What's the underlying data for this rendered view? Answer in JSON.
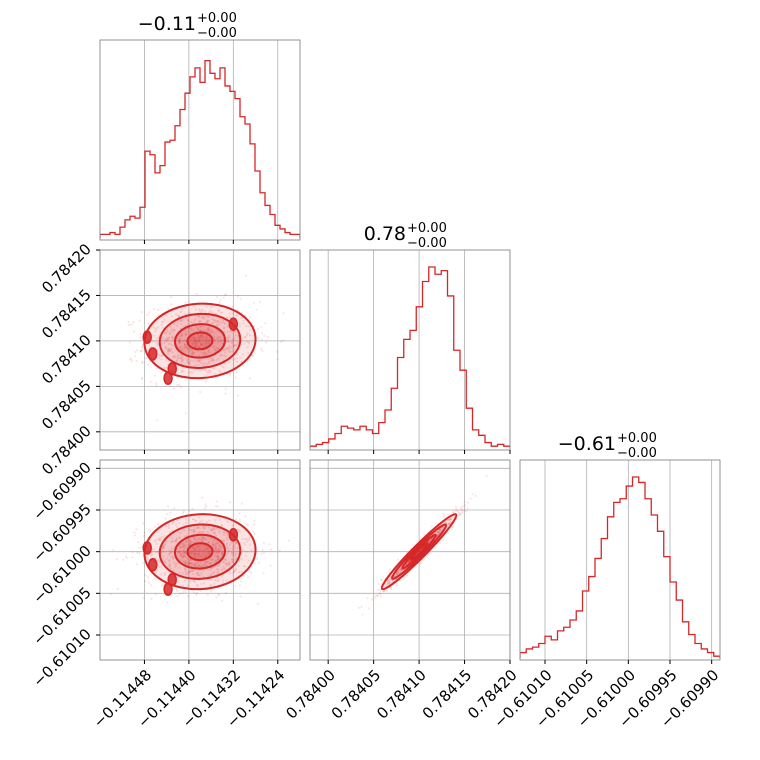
{
  "chart_data": {
    "type": "corner",
    "color": "#d62728",
    "grid": true,
    "parameters": [
      {
        "title": {
          "value": "−0.11",
          "upper": "+0.00",
          "lower": "−0.00"
        },
        "range": [
          -0.11456,
          -0.1142
        ],
        "ticks": [
          -0.11448,
          -0.1144,
          -0.11432,
          -0.11424
        ],
        "tick_labels": [
          "−0.11448",
          "−0.11440",
          "−0.11432",
          "−0.11424"
        ],
        "mean": -0.11438,
        "sigma": 5e-05,
        "hist_levels": [
          0.02,
          0.02,
          0.03,
          0.02,
          0.06,
          0.1,
          0.12,
          0.11,
          0.17,
          0.48,
          0.46,
          0.36,
          0.4,
          0.53,
          0.54,
          0.62,
          0.71,
          0.8,
          0.89,
          0.94,
          0.86,
          0.98,
          0.91,
          0.88,
          0.94,
          0.84,
          0.81,
          0.77,
          0.67,
          0.63,
          0.52,
          0.37,
          0.25,
          0.18,
          0.13,
          0.07,
          0.05,
          0.03,
          0.02,
          0.02
        ]
      },
      {
        "title": {
          "value": "0.78",
          "upper": "+0.00",
          "lower": "−0.00"
        },
        "range": [
          0.78398,
          0.7842
        ],
        "ticks": [
          0.784,
          0.78405,
          0.7841,
          0.78415,
          0.7842
        ],
        "tick_labels": [
          "0.78400",
          "0.78405",
          "0.78410",
          "0.78415",
          "0.78420"
        ],
        "mean": 0.7841,
        "sigma": 2.05e-05,
        "hist_levels": [
          0.01,
          0.02,
          0.03,
          0.05,
          0.08,
          0.12,
          0.11,
          0.1,
          0.12,
          0.1,
          0.08,
          0.14,
          0.21,
          0.33,
          0.5,
          0.6,
          0.65,
          0.78,
          0.92,
          1.0,
          0.96,
          0.98,
          0.84,
          0.54,
          0.43,
          0.22,
          0.1,
          0.07,
          0.03,
          0.01,
          0.02,
          0.01
        ]
      },
      {
        "title": {
          "value": "−0.61",
          "upper": "+0.00",
          "lower": "−0.00"
        },
        "range": [
          -0.61013,
          -0.60989
        ],
        "ticks": [
          -0.6101,
          -0.61005,
          -0.61,
          -0.60995,
          -0.6099
        ],
        "tick_labels": [
          "−0.61010",
          "−0.61005",
          "−0.61000",
          "−0.60995",
          "−0.60990"
        ],
        "mean": -0.61,
        "sigma": 2.25e-05,
        "hist_levels": [
          0.03,
          0.05,
          0.06,
          0.08,
          0.12,
          0.1,
          0.15,
          0.17,
          0.21,
          0.26,
          0.37,
          0.45,
          0.55,
          0.66,
          0.78,
          0.86,
          0.88,
          0.95,
          1.0,
          0.97,
          0.88,
          0.79,
          0.7,
          0.56,
          0.42,
          0.32,
          0.2,
          0.13,
          0.08,
          0.05,
          0.03,
          0.01
        ]
      }
    ],
    "correlations": {
      "0-1": 0.05,
      "0-2": 0.05,
      "1-2": 0.97
    },
    "scatter_count": 900
  }
}
